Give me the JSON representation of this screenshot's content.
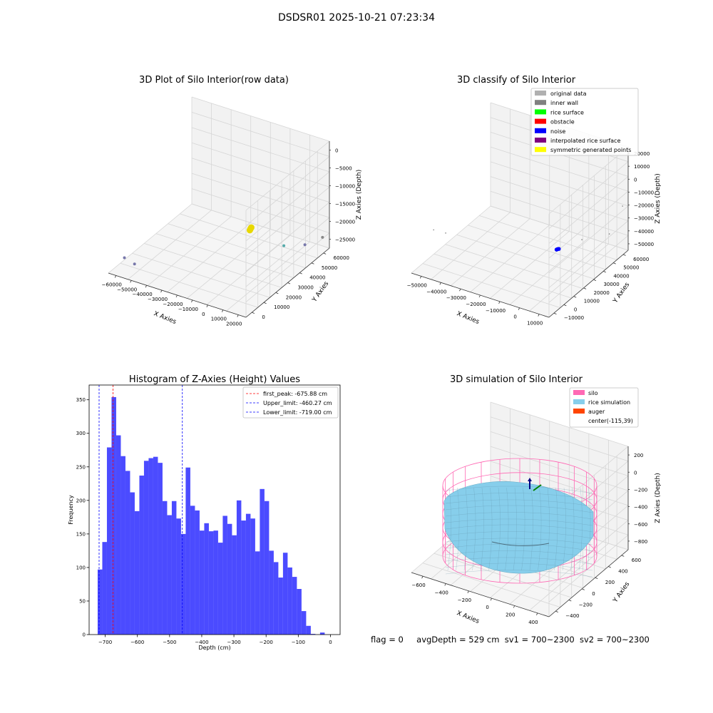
{
  "suptitle": "DSDSR01 2025-10-21 07:23:34",
  "footer": {
    "flag": "flag = 0",
    "avg_depth": "avgDepth = 529 cm",
    "sv1": "sv1 = 700~2300",
    "sv2": "sv2 = 700~2300"
  },
  "colors": {
    "hist_bar": "#4b4bff",
    "first_peak_line": "#ff0000",
    "limit_line": "#0000ff",
    "pane": "#f2f2f2",
    "silo": "#ff69b4",
    "rice_simulation": "#87ceeb",
    "auger": "#ff4500",
    "rice_surface": "#00ff00",
    "obstacle": "#ff0000",
    "noise": "#0000ff",
    "original_data": "#b0b0b0",
    "inner_wall": "#808080",
    "interpolated_rice_surface": "#800080",
    "symmetric_generated_points": "#ffff00"
  },
  "chart_data": [
    {
      "type": "scatter3d",
      "title": "3D Plot of Silo Interior(row data)",
      "xlabel": "X Axies",
      "ylabel": "Y Axies",
      "zlabel": "Z Axies (Depth)",
      "x_ticks": [
        "−60000",
        "−50000",
        "−40000",
        "−30000",
        "−20000",
        "−10000",
        "0",
        "10000",
        "20000"
      ],
      "y_ticks": [
        "0",
        "10000",
        "20000",
        "30000",
        "40000",
        "50000",
        "60000"
      ],
      "z_ticks": [
        "0",
        "−5000",
        "−10000",
        "−15000",
        "−20000",
        "−25000"
      ],
      "xlim": [
        -65000,
        22000
      ],
      "ylim": [
        -2000,
        65000
      ],
      "zlim": [
        -28000,
        1000
      ],
      "points": [
        {
          "x": -300,
          "y": 30000,
          "z": -16000,
          "color": "#e8d800"
        },
        {
          "x": -600,
          "y": 29800,
          "z": -16400,
          "color": "#e8d800"
        },
        {
          "x": 0,
          "y": 30200,
          "z": -15700,
          "color": "#e8d800"
        },
        {
          "x": -58000,
          "y": 2000,
          "z": -24000,
          "color": "#7777aa"
        },
        {
          "x": -52000,
          "y": 2500,
          "z": -25000,
          "color": "#7777aa"
        },
        {
          "x": 5000,
          "y": 50000,
          "z": -25500,
          "color": "#55aaaa"
        },
        {
          "x": 12000,
          "y": 58000,
          "z": -26500,
          "color": "#7777aa"
        },
        {
          "x": 20000,
          "y": 62000,
          "z": -24500,
          "color": "#888888"
        }
      ]
    },
    {
      "type": "scatter3d",
      "title": "3D classify of Silo Interior",
      "xlabel": "X Axies",
      "ylabel": "Y Axies",
      "zlabel": "Z Axies (Depth)",
      "x_ticks": [
        "−50000",
        "−40000",
        "−30000",
        "−20000",
        "−10000",
        "0",
        "10000"
      ],
      "y_ticks": [
        "−10000",
        "0",
        "10000",
        "20000",
        "30000",
        "40000",
        "50000",
        "60000"
      ],
      "z_ticks": [
        "20000",
        "10000",
        "0",
        "−10000",
        "−20000",
        "−30000",
        "−40000",
        "−50000"
      ],
      "xlim": [
        -58000,
        18000
      ],
      "ylim": [
        -12000,
        68000
      ],
      "zlim": [
        -52000,
        22000
      ],
      "legend": [
        {
          "label": "original data",
          "color": "#b0b0b0"
        },
        {
          "label": "inner wall",
          "color": "#808080"
        },
        {
          "label": "rice surface",
          "color": "#00ff00"
        },
        {
          "label": "obstacle",
          "color": "#ff0000"
        },
        {
          "label": "noise",
          "color": "#0000ff"
        },
        {
          "label": "interpolated rice surface",
          "color": "#800080"
        },
        {
          "label": "symmetric generated points",
          "color": "#ffff00"
        }
      ],
      "points": [
        {
          "x": -200,
          "y": 30000,
          "z": -36000,
          "color": "#0000ff"
        },
        {
          "x": -600,
          "y": 29700,
          "z": -36300,
          "color": "#0000ff"
        },
        {
          "x": 300,
          "y": 30300,
          "z": -35800,
          "color": "#0000ff"
        },
        {
          "x": -55000,
          "y": 5000,
          "z": -30000,
          "color": "#808080"
        },
        {
          "x": -50000,
          "y": 8000,
          "z": -32000,
          "color": "#808080"
        },
        {
          "x": 5000,
          "y": 45000,
          "z": -36000,
          "color": "#808080"
        },
        {
          "x": 12000,
          "y": 60000,
          "z": -38000,
          "color": "#808080"
        },
        {
          "x": 16000,
          "y": 66000,
          "z": -20000,
          "color": "#808080"
        }
      ]
    },
    {
      "type": "bar",
      "title": "Histogram of Z-Axies (Height) Values",
      "xlabel": "Depth (cm)",
      "ylabel": "Frequency",
      "xlim": [
        -750,
        30
      ],
      "ylim": [
        0,
        372
      ],
      "x_ticks": [
        -700,
        -600,
        -500,
        -400,
        -300,
        -200,
        -100,
        0
      ],
      "x_tick_labels": [
        "−700",
        "−600",
        "−500",
        "−400",
        "−300",
        "−200",
        "−100",
        "0"
      ],
      "y_ticks": [
        0,
        50,
        100,
        150,
        200,
        250,
        300,
        350
      ],
      "bin_start": -723.5,
      "bin_width": 14.4,
      "values": [
        97,
        138,
        279,
        354,
        297,
        266,
        244,
        212,
        184,
        237,
        259,
        263,
        265,
        256,
        199,
        178,
        199,
        173,
        150,
        249,
        192,
        185,
        155,
        166,
        154,
        155,
        137,
        177,
        165,
        148,
        200,
        170,
        180,
        173,
        124,
        217,
        199,
        125,
        108,
        85,
        122,
        100,
        86,
        68,
        35,
        13,
        1,
        0,
        3
      ],
      "vlines": [
        {
          "x": -675.88,
          "label": "first_peak: -675.88 cm",
          "color": "#ff0000"
        },
        {
          "x": -460.27,
          "label": "Upper_limit: -460.27 cm",
          "color": "#0000ff"
        },
        {
          "x": -719.0,
          "label": "Lower_limit: -719.00 cm",
          "color": "#0000ff"
        }
      ]
    },
    {
      "type": "surface3d",
      "title": "3D simulation of Silo Interior",
      "xlabel": "X Axies",
      "ylabel": "Y Axies",
      "zlabel": "Z Axies (Depth)",
      "x_ticks": [
        "−600",
        "−400",
        "−200",
        "0",
        "200",
        "400"
      ],
      "y_ticks": [
        "−400",
        "−200",
        "0",
        "200",
        "400",
        "600"
      ],
      "z_ticks": [
        "200",
        "0",
        "−200",
        "−400",
        "−600",
        "−800"
      ],
      "legend": [
        {
          "label": "silo",
          "color": "#ff69b4"
        },
        {
          "label": "rice simulation",
          "color": "#87ceeb"
        },
        {
          "label": "auger",
          "color": "#ff4500"
        },
        {
          "label": "center(-115,39)",
          "color": ""
        }
      ],
      "center": {
        "x": -115,
        "y": 39
      }
    }
  ]
}
